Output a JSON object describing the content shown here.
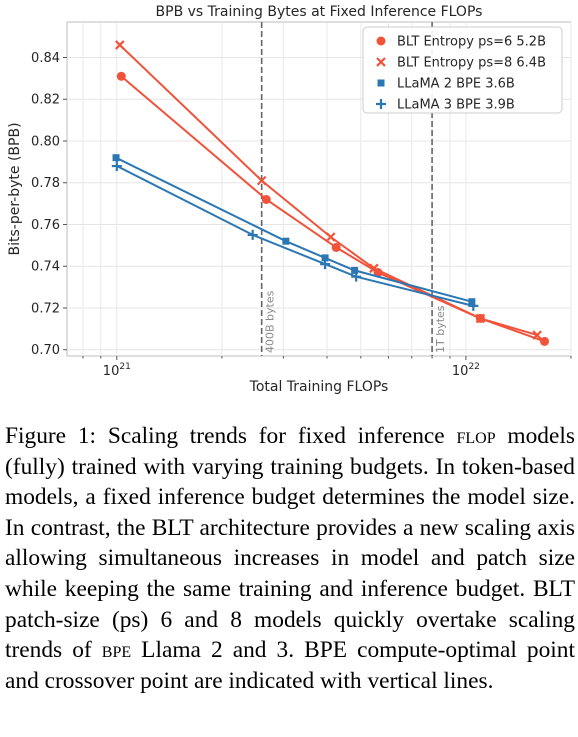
{
  "chart_data": {
    "type": "line",
    "title": "BPB vs Training Bytes at Fixed Inference FLOPs",
    "xlabel": "Total Training FLOPs",
    "ylabel": "Bits-per-byte (BPB)",
    "xscale": "log",
    "xlim": [
      7.2e+20,
      2e+22
    ],
    "ylim": [
      0.697,
      0.857
    ],
    "grid": true,
    "legend_position": "top-right",
    "yticks": [
      "0.70",
      "0.72",
      "0.74",
      "0.76",
      "0.78",
      "0.80",
      "0.82",
      "0.84"
    ],
    "xticks": [
      {
        "base": "10",
        "exp": "21",
        "value": 1e+21
      },
      {
        "base": "10",
        "exp": "22",
        "value": 1e+22
      }
    ],
    "vlines": [
      {
        "label": "400B bytes",
        "x": 2.6e+21
      },
      {
        "label": "1T bytes",
        "x": 8e+21
      }
    ],
    "series": [
      {
        "name": "BLT Entropy ps=6 5.2B",
        "color": "#f0533a",
        "marker": "circle",
        "x": [
          1.03e+21,
          2.68e+21,
          4.25e+21,
          5.6e+21,
          1.1e+22,
          1.68e+22
        ],
        "y": [
          0.831,
          0.772,
          0.749,
          0.737,
          0.715,
          0.704
        ]
      },
      {
        "name": "BLT Entropy ps=8 6.4B",
        "color": "#f0533a",
        "marker": "x",
        "x": [
          1.02e+21,
          2.6e+21,
          4.1e+21,
          5.45e+21,
          1.1e+22,
          1.6e+22
        ],
        "y": [
          0.846,
          0.781,
          0.754,
          0.739,
          0.715,
          0.707
        ]
      },
      {
        "name": "LLaMA 2 BPE 3.6B",
        "color": "#2b77b4",
        "marker": "square",
        "x": [
          9.95e+20,
          3.05e+21,
          3.95e+21,
          4.8e+21,
          1.04e+22
        ],
        "y": [
          0.792,
          0.752,
          0.744,
          0.738,
          0.723
        ]
      },
      {
        "name": "LLaMA 3 BPE 3.9B",
        "color": "#2b77b4",
        "marker": "plus",
        "x": [
          1e+21,
          2.45e+21,
          3.95e+21,
          4.85e+21,
          1.05e+22
        ],
        "y": [
          0.788,
          0.755,
          0.741,
          0.735,
          0.721
        ]
      }
    ]
  },
  "caption": {
    "label": "Figure 1:",
    "part1": "Scaling trends for fixed inference",
    "flop_abbr": "flop",
    "part2": "models (fully) trained with varying training budgets. In token-based models, a fixed inference budget determines the model size. In contrast, the BLT architecture provides a new scaling axis allowing simultaneous increases in model and patch size while keeping the same training and inference budget. BLT patch-size (ps) 6 and 8 models quickly overtake scaling trends of",
    "bpe_abbr": "bpe",
    "part3": "Llama 2 and 3. BPE compute-optimal point and crossover point are indicated with vertical lines."
  }
}
